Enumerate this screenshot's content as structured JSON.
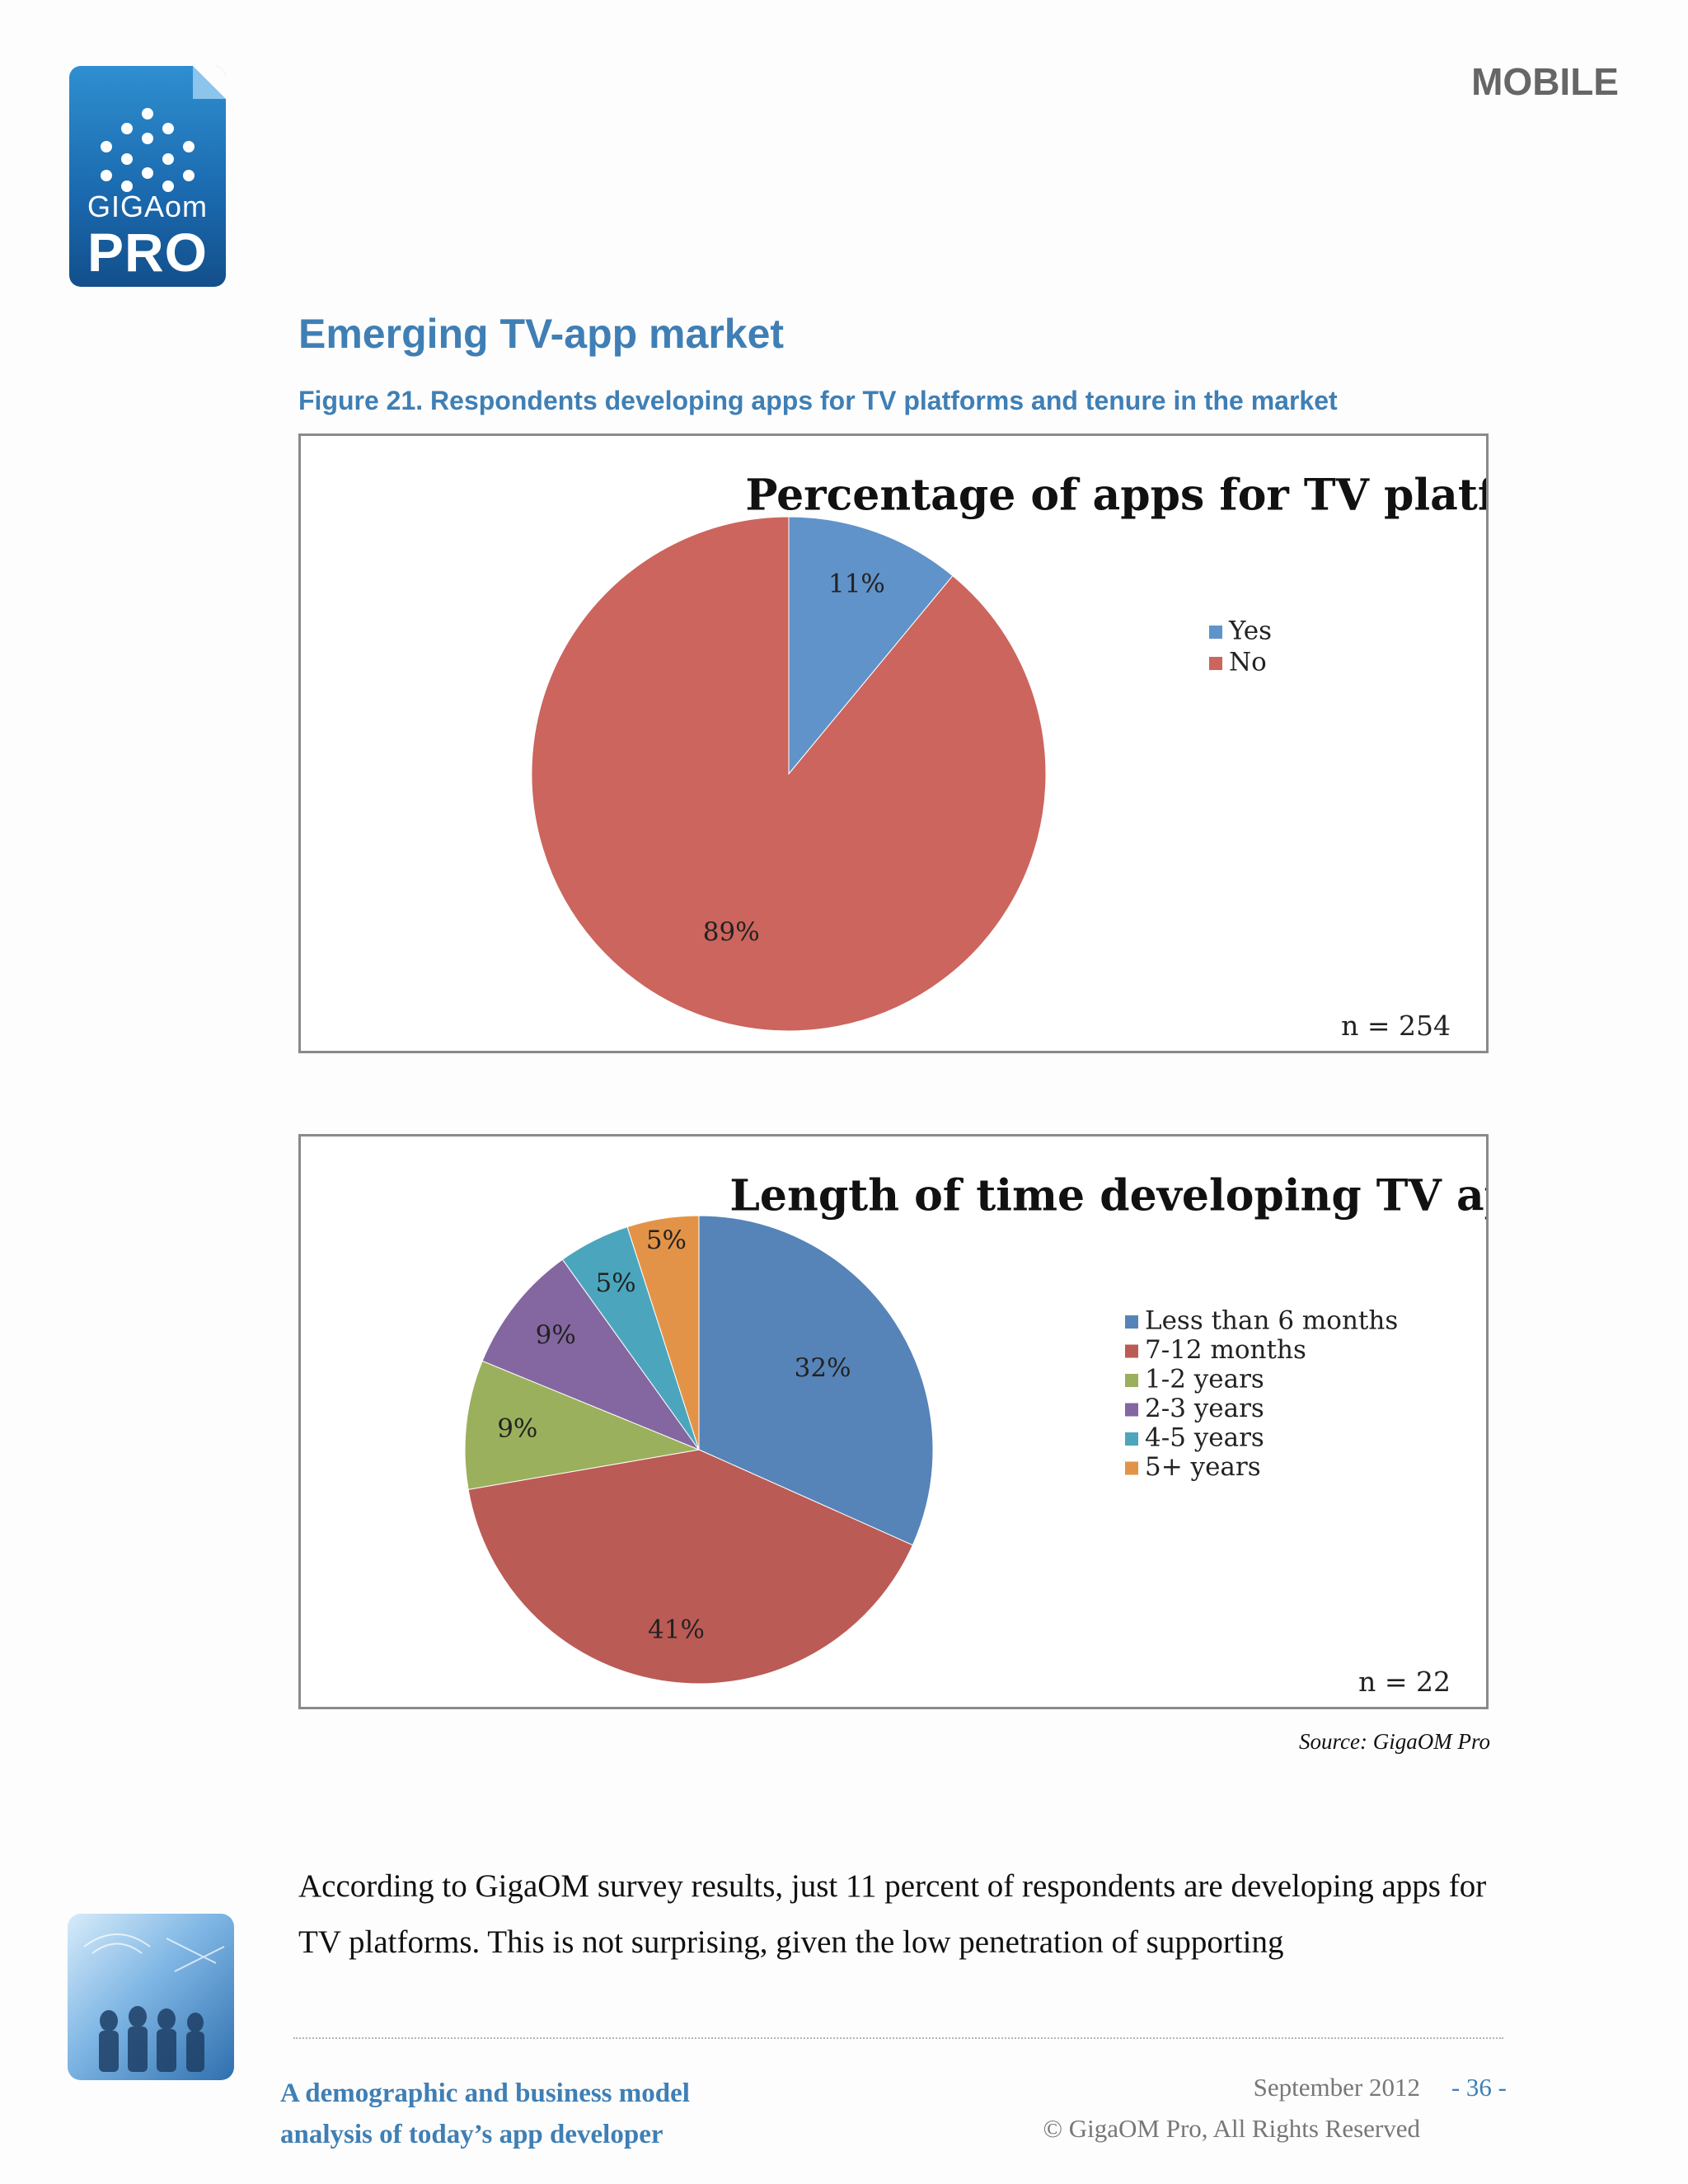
{
  "header": {
    "logo_top": "GIGAom",
    "logo_bottom": "PRO",
    "section": "MOBILE"
  },
  "title": "Emerging TV-app market",
  "figure_caption": "Figure 21. Respondents developing apps for TV platforms and tenure in the market",
  "chart_data": [
    {
      "type": "pie",
      "title": "Percentage of apps for TV platforms",
      "labels": [
        "Yes",
        "No"
      ],
      "values": [
        11,
        89
      ],
      "value_labels": [
        "11%",
        "89%"
      ],
      "colors": [
        "#6093c9",
        "#cc655d"
      ],
      "legend_position": "right",
      "note": "n = 254"
    },
    {
      "type": "pie",
      "title": "Length of time developing TV apps",
      "labels": [
        "Less than 6 months",
        "7-12 months",
        "1-2 years",
        "2-3 years",
        "4-5 years",
        "5+ years"
      ],
      "values": [
        32,
        41,
        9,
        9,
        5,
        5
      ],
      "value_labels": [
        "32%",
        "41%",
        "9%",
        "9%",
        "5%",
        "5%"
      ],
      "colors": [
        "#5684b9",
        "#bb5b55",
        "#9bb05c",
        "#8467a0",
        "#4ba6bd",
        "#e39348"
      ],
      "legend_position": "right",
      "note": "n = 22"
    }
  ],
  "source": "Source: GigaOM Pro",
  "body_text": "According to GigaOM survey results, just 11 percent of respondents are developing apps for TV platforms. This is not surprising, given the low penetration of supporting",
  "footer": {
    "report_title_line1": "A demographic and business model",
    "report_title_line2": "analysis of today’s app developer",
    "date": "September 2012",
    "page": "- 36 -",
    "copyright": "© GigaOM Pro, All Rights Reserved"
  }
}
